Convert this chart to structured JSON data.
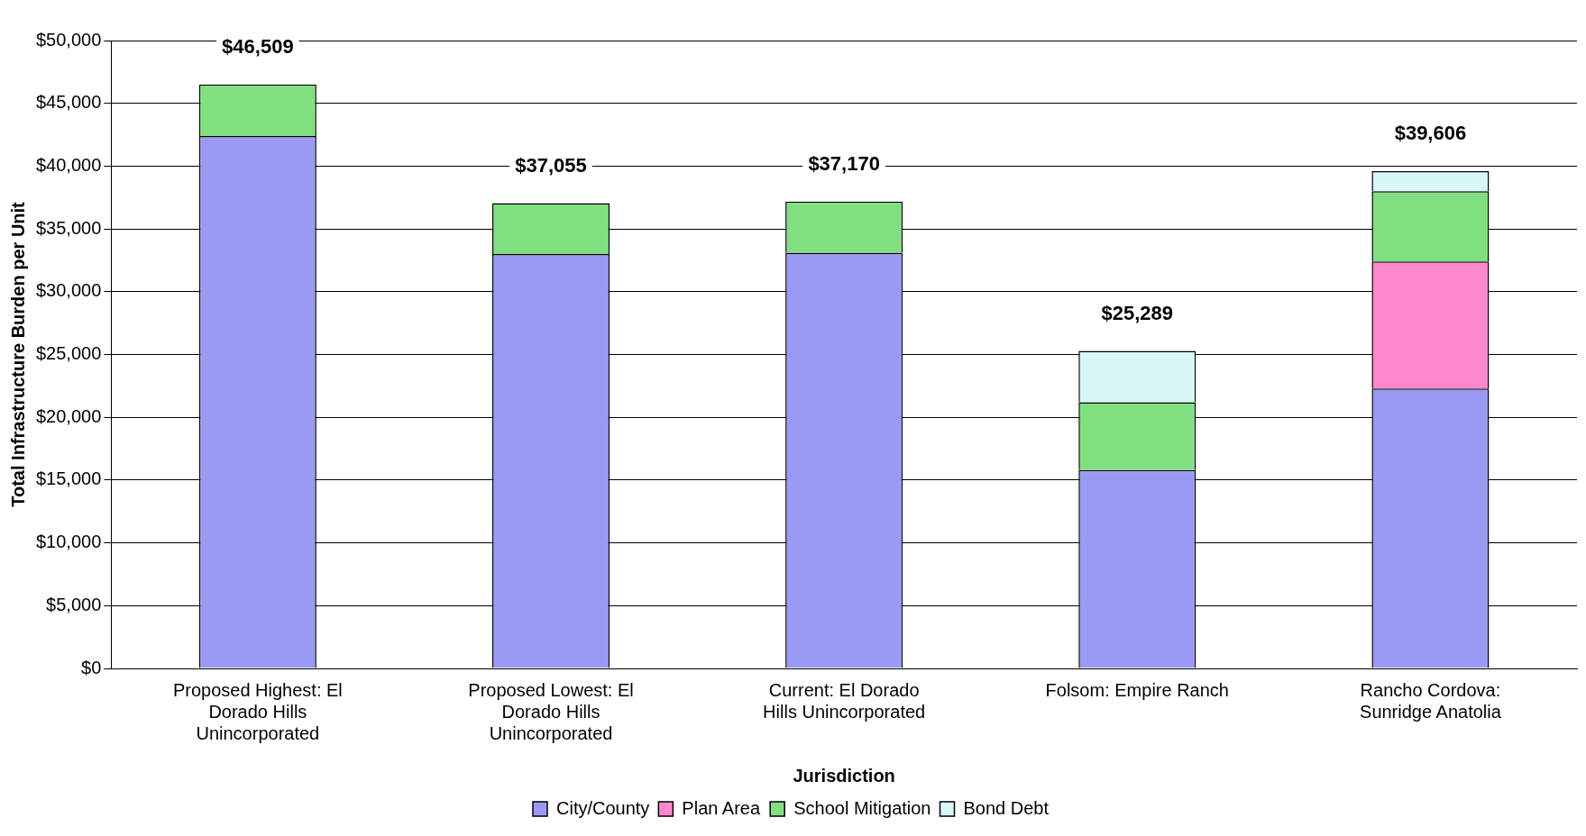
{
  "chart_data": {
    "type": "bar",
    "stacked": true,
    "xlabel": "Jurisdiction",
    "ylabel": "Total Infrastructure Burden per Unit",
    "categories": [
      "Proposed Highest: El Dorado Hills Unincorporated",
      "Proposed Lowest: El Dorado Hills Unincorporated",
      "Current: El Dorado Hills Unincorporated",
      "Folsom: Empire Ranch",
      "Rancho Cordova: Sunridge Anatolia"
    ],
    "series": [
      {
        "name": "City/County",
        "color": "#9a9af5",
        "values": [
          42400,
          33000,
          33100,
          15800,
          22300
        ]
      },
      {
        "name": "Plan Area",
        "color": "#ff88cc",
        "values": [
          null,
          null,
          null,
          null,
          10100
        ]
      },
      {
        "name": "School Mitigation",
        "color": "#80e080",
        "values": [
          4109,
          4055,
          4070,
          5400,
          5600
        ]
      },
      {
        "name": "Bond Debt",
        "color": "#d8f8f8",
        "values": [
          null,
          null,
          null,
          4089,
          1606
        ]
      }
    ],
    "totals": [
      "$46,509",
      "$37,055",
      "$37,170",
      "$25,289",
      "$39,606"
    ],
    "ylim": [
      0,
      50000
    ],
    "yticks": [
      {
        "value": 0,
        "label": "$0"
      },
      {
        "value": 5000,
        "label": "$5,000"
      },
      {
        "value": 10000,
        "label": "$10,000"
      },
      {
        "value": 15000,
        "label": "$15,000"
      },
      {
        "value": 20000,
        "label": "$20,000"
      },
      {
        "value": 25000,
        "label": "$25,000"
      },
      {
        "value": 30000,
        "label": "$30,000"
      },
      {
        "value": 35000,
        "label": "$35,000"
      },
      {
        "value": 40000,
        "label": "$40,000"
      },
      {
        "value": 45000,
        "label": "$45,000"
      },
      {
        "value": 50000,
        "label": "$50,000"
      }
    ],
    "grid": "y",
    "legend": "bottom"
  }
}
